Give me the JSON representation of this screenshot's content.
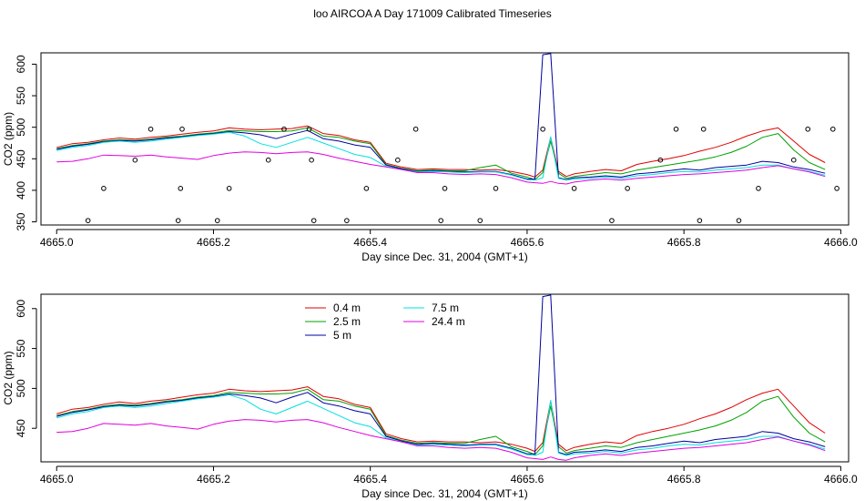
{
  "figure": {
    "title": "loo AIRCOA A  Day 171009  Calibrated Timeseries"
  },
  "colors": {
    "0.4 m": "#e00000",
    "2.5 m": "#00a000",
    "5 m": "#0000a0",
    "7.5 m": "#00e0e0",
    "24.4 m": "#e000e0",
    "markers": "#000000"
  },
  "chart_data": [
    {
      "type": "line",
      "title": "loo AIRCOA A  Day 171009  Calibrated Timeseries",
      "xlabel": "Day since Dec. 31, 2004 (GMT+1)",
      "ylabel": "CO2 (ppm)",
      "xlim": [
        4664.98,
        4666.01
      ],
      "ylim": [
        345,
        618
      ],
      "xticks": [
        "4665.0",
        "4665.2",
        "4665.4",
        "4665.6",
        "4665.8",
        "4666.0"
      ],
      "yticks": [
        "350",
        "400",
        "450",
        "500",
        "550",
        "600"
      ],
      "grid": false,
      "legend": "none",
      "x": [
        4665.0,
        4665.02,
        4665.04,
        4665.06,
        4665.08,
        4665.1,
        4665.12,
        4665.14,
        4665.16,
        4665.18,
        4665.2,
        4665.22,
        4665.24,
        4665.26,
        4665.28,
        4665.3,
        4665.32,
        4665.34,
        4665.36,
        4665.38,
        4665.4,
        4665.42,
        4665.44,
        4665.46,
        4665.48,
        4665.5,
        4665.52,
        4665.54,
        4665.56,
        4665.58,
        4665.6,
        4665.61,
        4665.62,
        4665.63,
        4665.64,
        4665.65,
        4665.66,
        4665.68,
        4665.7,
        4665.72,
        4665.74,
        4665.76,
        4665.78,
        4665.8,
        4665.82,
        4665.84,
        4665.86,
        4665.88,
        4665.9,
        4665.92,
        4665.94,
        4665.96,
        4665.98
      ],
      "series": [
        {
          "name": "0.4 m",
          "values": [
            468,
            474,
            476,
            480,
            483,
            481,
            484,
            486,
            489,
            492,
            494,
            499,
            497,
            496,
            497,
            498,
            502,
            490,
            487,
            480,
            476,
            443,
            437,
            433,
            434,
            433,
            433,
            432,
            433,
            430,
            425,
            421,
            432,
            484,
            430,
            422,
            426,
            430,
            433,
            431,
            441,
            446,
            450,
            455,
            462,
            468,
            476,
            486,
            494,
            499,
            478,
            457,
            444
          ]
        },
        {
          "name": "2.5 m",
          "values": [
            466,
            471,
            474,
            478,
            480,
            479,
            481,
            484,
            486,
            489,
            491,
            495,
            494,
            493,
            493,
            494,
            499,
            486,
            484,
            478,
            474,
            441,
            435,
            431,
            432,
            431,
            431,
            436,
            440,
            427,
            421,
            417,
            428,
            478,
            427,
            419,
            422,
            425,
            428,
            426,
            432,
            436,
            440,
            444,
            448,
            453,
            460,
            470,
            484,
            490,
            464,
            444,
            433
          ]
        },
        {
          "name": "5 m",
          "values": [
            465,
            470,
            473,
            477,
            479,
            478,
            480,
            483,
            485,
            488,
            490,
            493,
            491,
            488,
            482,
            489,
            495,
            482,
            478,
            472,
            468,
            440,
            434,
            430,
            431,
            430,
            429,
            430,
            430,
            425,
            418,
            418,
            615,
            617,
            420,
            417,
            420,
            421,
            423,
            421,
            426,
            428,
            431,
            434,
            432,
            436,
            438,
            440,
            446,
            444,
            437,
            433,
            427
          ]
        },
        {
          "name": "7.5 m",
          "values": [
            463,
            468,
            471,
            476,
            478,
            476,
            478,
            481,
            484,
            487,
            489,
            492,
            486,
            474,
            468,
            476,
            484,
            475,
            466,
            457,
            452,
            438,
            433,
            429,
            430,
            429,
            428,
            429,
            429,
            424,
            417,
            416,
            420,
            485,
            419,
            416,
            418,
            419,
            421,
            419,
            423,
            425,
            428,
            430,
            429,
            432,
            434,
            436,
            440,
            440,
            434,
            430,
            424
          ]
        },
        {
          "name": "24.4 m",
          "values": [
            445,
            446,
            450,
            456,
            455,
            454,
            456,
            453,
            451,
            449,
            455,
            459,
            461,
            460,
            458,
            460,
            461,
            457,
            451,
            446,
            441,
            437,
            433,
            428,
            428,
            426,
            425,
            426,
            425,
            420,
            413,
            412,
            411,
            414,
            411,
            410,
            413,
            416,
            418,
            416,
            419,
            421,
            423,
            425,
            426,
            428,
            430,
            432,
            436,
            439,
            434,
            429,
            422
          ]
        }
      ],
      "markers": {
        "x": [
          4665.04,
          4665.06,
          4665.1,
          4665.12,
          4665.155,
          4665.158,
          4665.16,
          4665.205,
          4665.22,
          4665.27,
          4665.29,
          4665.322,
          4665.325,
          4665.328,
          4665.37,
          4665.395,
          4665.435,
          4665.458,
          4665.49,
          4665.495,
          4665.54,
          4665.56,
          4665.62,
          4665.66,
          4665.708,
          4665.728,
          4665.77,
          4665.79,
          4665.82,
          4665.825,
          4665.87,
          4665.895,
          4665.94,
          4665.958,
          4665.99,
          4665.995
        ],
        "y": [
          352,
          403,
          448,
          497,
          352,
          403,
          497,
          352,
          403,
          448,
          497,
          497,
          448,
          352,
          352,
          403,
          448,
          497,
          352,
          403,
          352,
          403,
          497,
          403,
          352,
          403,
          448,
          497,
          352,
          497,
          352,
          403,
          448,
          497,
          497,
          403
        ]
      }
    },
    {
      "type": "line",
      "title": "",
      "xlabel": "Day since Dec. 31, 2004 (GMT+1)",
      "ylabel": "CO2 (ppm)",
      "xlim": [
        4664.98,
        4666.01
      ],
      "ylim": [
        408,
        618
      ],
      "xticks": [
        "4665.0",
        "4665.2",
        "4665.4",
        "4665.6",
        "4665.8",
        "4666.0"
      ],
      "yticks": [
        "450",
        "500",
        "550",
        "600"
      ],
      "grid": false,
      "legend": "top-left",
      "legend_entries": [
        "0.4 m",
        "2.5 m",
        "5 m",
        "7.5 m",
        "24.4 m"
      ],
      "x": [
        4665.0,
        4665.02,
        4665.04,
        4665.06,
        4665.08,
        4665.1,
        4665.12,
        4665.14,
        4665.16,
        4665.18,
        4665.2,
        4665.22,
        4665.24,
        4665.26,
        4665.28,
        4665.3,
        4665.32,
        4665.34,
        4665.36,
        4665.38,
        4665.4,
        4665.42,
        4665.44,
        4665.46,
        4665.48,
        4665.5,
        4665.52,
        4665.54,
        4665.56,
        4665.58,
        4665.6,
        4665.61,
        4665.62,
        4665.63,
        4665.64,
        4665.65,
        4665.66,
        4665.68,
        4665.7,
        4665.72,
        4665.74,
        4665.76,
        4665.78,
        4665.8,
        4665.82,
        4665.84,
        4665.86,
        4665.88,
        4665.9,
        4665.92,
        4665.94,
        4665.96,
        4665.98
      ],
      "series": [
        {
          "name": "0.4 m",
          "values": [
            468,
            474,
            476,
            480,
            483,
            481,
            484,
            486,
            489,
            492,
            494,
            499,
            497,
            496,
            497,
            498,
            502,
            490,
            487,
            480,
            476,
            443,
            437,
            433,
            434,
            433,
            433,
            432,
            433,
            430,
            425,
            421,
            432,
            484,
            430,
            422,
            426,
            430,
            433,
            431,
            441,
            446,
            450,
            455,
            462,
            468,
            476,
            486,
            494,
            499,
            478,
            457,
            444
          ]
        },
        {
          "name": "2.5 m",
          "values": [
            466,
            471,
            474,
            478,
            480,
            479,
            481,
            484,
            486,
            489,
            491,
            495,
            494,
            493,
            493,
            494,
            499,
            486,
            484,
            478,
            474,
            441,
            435,
            431,
            432,
            431,
            431,
            436,
            440,
            427,
            421,
            417,
            428,
            478,
            427,
            419,
            422,
            425,
            428,
            426,
            432,
            436,
            440,
            444,
            448,
            453,
            460,
            470,
            484,
            490,
            464,
            444,
            433
          ]
        },
        {
          "name": "5 m",
          "values": [
            465,
            470,
            473,
            477,
            479,
            478,
            480,
            483,
            485,
            488,
            490,
            493,
            491,
            488,
            482,
            489,
            495,
            482,
            478,
            472,
            468,
            440,
            434,
            430,
            431,
            430,
            429,
            430,
            430,
            425,
            418,
            418,
            615,
            617,
            420,
            417,
            420,
            421,
            423,
            421,
            426,
            428,
            431,
            434,
            432,
            436,
            438,
            440,
            446,
            444,
            437,
            433,
            427
          ]
        },
        {
          "name": "7.5 m",
          "values": [
            463,
            468,
            471,
            476,
            478,
            476,
            478,
            481,
            484,
            487,
            489,
            492,
            486,
            474,
            468,
            476,
            484,
            475,
            466,
            457,
            452,
            438,
            433,
            429,
            430,
            429,
            428,
            429,
            429,
            424,
            417,
            416,
            420,
            485,
            419,
            416,
            418,
            419,
            421,
            419,
            423,
            425,
            428,
            430,
            429,
            432,
            434,
            436,
            440,
            440,
            434,
            430,
            424
          ]
        },
        {
          "name": "24.4 m",
          "values": [
            445,
            446,
            450,
            456,
            455,
            454,
            456,
            453,
            451,
            449,
            455,
            459,
            461,
            460,
            458,
            460,
            461,
            457,
            451,
            446,
            441,
            437,
            433,
            428,
            428,
            426,
            425,
            426,
            425,
            420,
            413,
            412,
            411,
            414,
            411,
            410,
            413,
            416,
            418,
            416,
            419,
            421,
            423,
            425,
            426,
            428,
            430,
            432,
            436,
            439,
            434,
            429,
            422
          ]
        }
      ]
    }
  ]
}
